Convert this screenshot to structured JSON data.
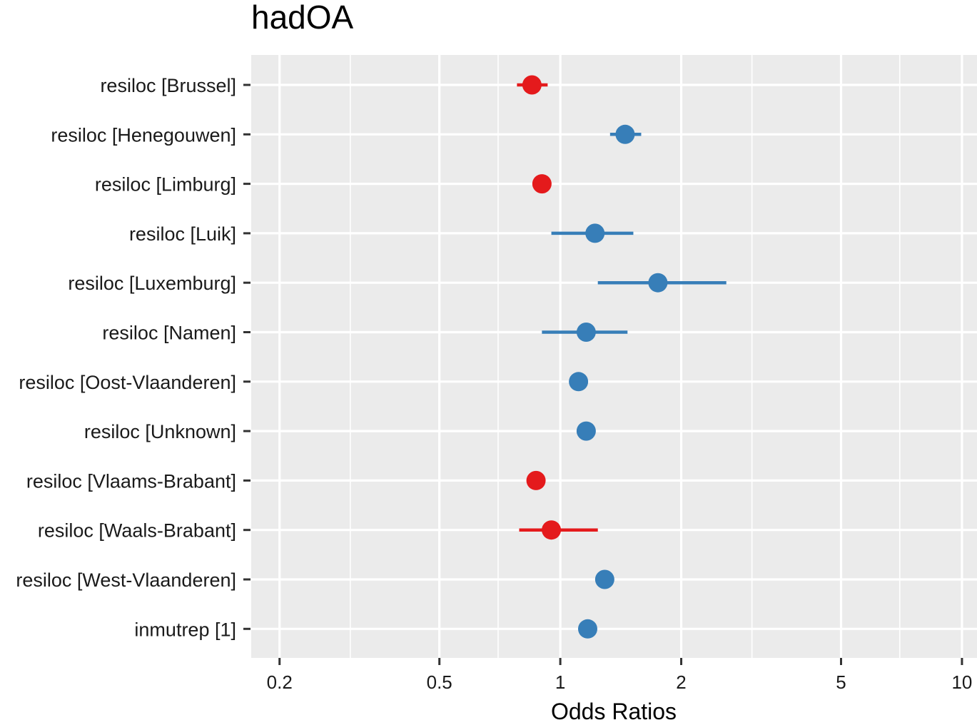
{
  "chart_data": {
    "type": "scatter",
    "subtype": "forest-plot",
    "title": "hadOA",
    "xlabel": "Odds Ratios",
    "ylabel": "",
    "x_scale": "log",
    "xlim": [
      0.17,
      10.9
    ],
    "x_ticks": [
      0.2,
      0.5,
      1,
      2,
      5,
      10
    ],
    "x_tick_labels": [
      "0.2",
      "0.5",
      "1",
      "2",
      "5",
      "10"
    ],
    "x_minor_gridlines": [
      0.3,
      0.7,
      3,
      7
    ],
    "grid": true,
    "legend": "none",
    "colors": {
      "positive": "#377eb8",
      "negative": "#e41a1c",
      "panel": "#ebebeb",
      "grid": "#ffffff"
    },
    "rows": [
      {
        "label": "resiloc [Brussel]",
        "estimate": 0.85,
        "ci_low": 0.78,
        "ci_high": 0.93,
        "direction": "negative"
      },
      {
        "label": "resiloc [Henegouwen]",
        "estimate": 1.45,
        "ci_low": 1.33,
        "ci_high": 1.59,
        "direction": "positive"
      },
      {
        "label": "resiloc [Limburg]",
        "estimate": 0.9,
        "ci_low": 0.86,
        "ci_high": 0.95,
        "direction": "negative"
      },
      {
        "label": "resiloc [Luik]",
        "estimate": 1.22,
        "ci_low": 0.95,
        "ci_high": 1.52,
        "direction": "positive"
      },
      {
        "label": "resiloc [Luxemburg]",
        "estimate": 1.75,
        "ci_low": 1.24,
        "ci_high": 2.59,
        "direction": "positive"
      },
      {
        "label": "resiloc [Namen]",
        "estimate": 1.16,
        "ci_low": 0.9,
        "ci_high": 1.47,
        "direction": "positive"
      },
      {
        "label": "resiloc [Oost-Vlaanderen]",
        "estimate": 1.11,
        "ci_low": 1.11,
        "ci_high": 1.11,
        "direction": "positive"
      },
      {
        "label": "resiloc [Unknown]",
        "estimate": 1.16,
        "ci_low": 1.16,
        "ci_high": 1.16,
        "direction": "positive"
      },
      {
        "label": "resiloc [Vlaams-Brabant]",
        "estimate": 0.87,
        "ci_low": 0.84,
        "ci_high": 0.9,
        "direction": "negative"
      },
      {
        "label": "resiloc [Waals-Brabant]",
        "estimate": 0.95,
        "ci_low": 0.79,
        "ci_high": 1.24,
        "direction": "negative"
      },
      {
        "label": "resiloc [West-Vlaanderen]",
        "estimate": 1.29,
        "ci_low": 1.29,
        "ci_high": 1.29,
        "direction": "positive"
      },
      {
        "label": "inmutrep [1]",
        "estimate": 1.17,
        "ci_low": 1.17,
        "ci_high": 1.17,
        "direction": "positive"
      }
    ]
  }
}
